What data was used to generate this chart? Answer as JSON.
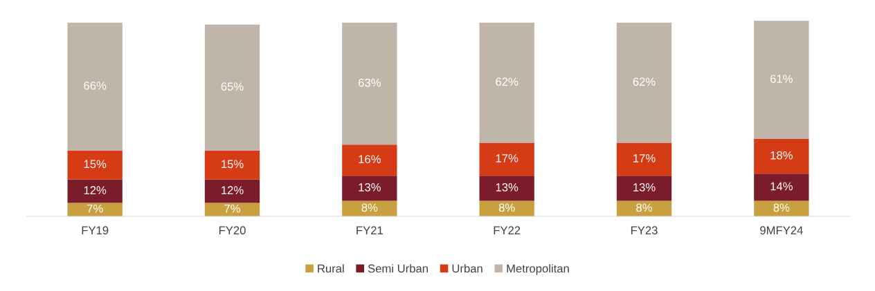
{
  "chart_data": {
    "type": "bar",
    "stacked": true,
    "legend": "bottom",
    "grid": false,
    "categories": [
      "FY19",
      "FY20",
      "FY21",
      "FY22",
      "FY23",
      "9MFY24"
    ],
    "series": [
      {
        "name": "Rural",
        "color": "#c9a03f",
        "values": [
          7,
          7,
          8,
          8,
          8,
          8
        ],
        "value_labels": [
          "7%",
          "7%",
          "8%",
          "8%",
          "8%",
          "8%"
        ]
      },
      {
        "name": "Semi Urban",
        "color": "#7b1c2b",
        "values": [
          12,
          12,
          13,
          13,
          13,
          14
        ],
        "value_labels": [
          "12%",
          "12%",
          "13%",
          "13%",
          "13%",
          "14%"
        ]
      },
      {
        "name": "Urban",
        "color": "#d53c16",
        "values": [
          15,
          15,
          16,
          17,
          17,
          18
        ],
        "value_labels": [
          "15%",
          "15%",
          "16%",
          "17%",
          "17%",
          "18%"
        ]
      },
      {
        "name": "Metropolitan",
        "color": "#bfb6a9",
        "values": [
          66,
          65,
          63,
          62,
          62,
          61
        ],
        "value_labels": [
          "66%",
          "65%",
          "63%",
          "62%",
          "62%",
          "61%"
        ]
      }
    ]
  }
}
